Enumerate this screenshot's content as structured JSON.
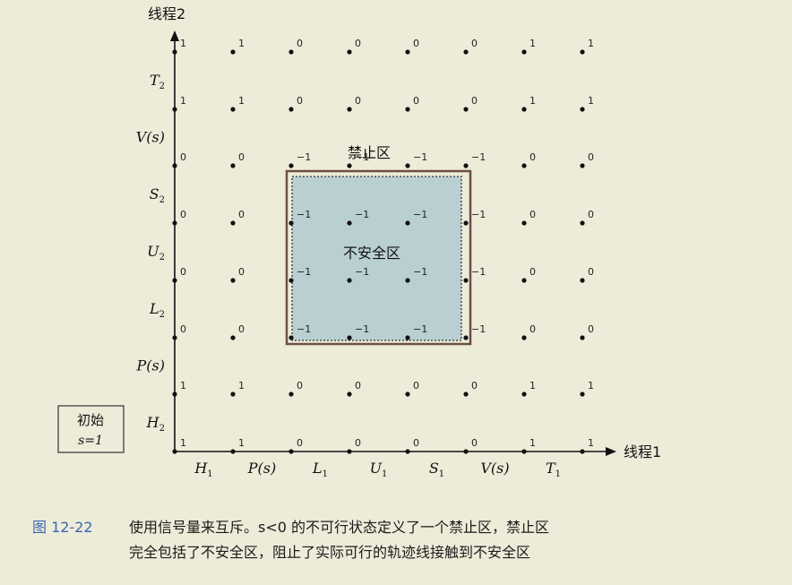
{
  "axes": {
    "y_title": "线程2",
    "x_title": "线程1",
    "x_labels": [
      {
        "main": "H",
        "sub": "1"
      },
      {
        "main": "P(s)",
        "sub": ""
      },
      {
        "main": "L",
        "sub": "1"
      },
      {
        "main": "U",
        "sub": "1"
      },
      {
        "main": "S",
        "sub": "1"
      },
      {
        "main": "V(s)",
        "sub": ""
      },
      {
        "main": "T",
        "sub": "1"
      }
    ],
    "y_labels": [
      {
        "main": "H",
        "sub": "2"
      },
      {
        "main": "P(s)",
        "sub": ""
      },
      {
        "main": "L",
        "sub": "2"
      },
      {
        "main": "U",
        "sub": "2"
      },
      {
        "main": "S",
        "sub": "2"
      },
      {
        "main": "V(s)",
        "sub": ""
      },
      {
        "main": "T",
        "sub": "2"
      }
    ]
  },
  "grid_values": [
    [
      "1",
      "1",
      "0",
      "0",
      "0",
      "0",
      "1",
      "1"
    ],
    [
      "1",
      "1",
      "0",
      "0",
      "0",
      "0",
      "1",
      "1"
    ],
    [
      "0",
      "0",
      "−1",
      "−1",
      "−1",
      "−1",
      "0",
      "0"
    ],
    [
      "0",
      "0",
      "−1",
      "−1",
      "−1",
      "−1",
      "0",
      "0"
    ],
    [
      "0",
      "0",
      "−1",
      "−1",
      "−1",
      "−1",
      "0",
      "0"
    ],
    [
      "0",
      "0",
      "−1",
      "−1",
      "−1",
      "−1",
      "0",
      "0"
    ],
    [
      "1",
      "1",
      "0",
      "0",
      "0",
      "0",
      "1",
      "1"
    ],
    [
      "1",
      "1",
      "0",
      "0",
      "0",
      "0",
      "1",
      "1"
    ]
  ],
  "regions": {
    "forbidden_label": "禁止区",
    "unsafe_label": "不安全区",
    "forbidden_color": "#6b4f45",
    "unsafe_color": "#b9cfd2"
  },
  "initial_box": {
    "line1": "初始",
    "line2": "s=1"
  },
  "caption": {
    "figure_number": "图 12-22",
    "line1": "使用信号量来互斥。s<0 的不可行状态定义了一个禁止区，禁止区",
    "line2": "完全包括了不安全区，阻止了实际可行的轨迹线接触到不安全区",
    "number_color": "#3b66b0"
  }
}
